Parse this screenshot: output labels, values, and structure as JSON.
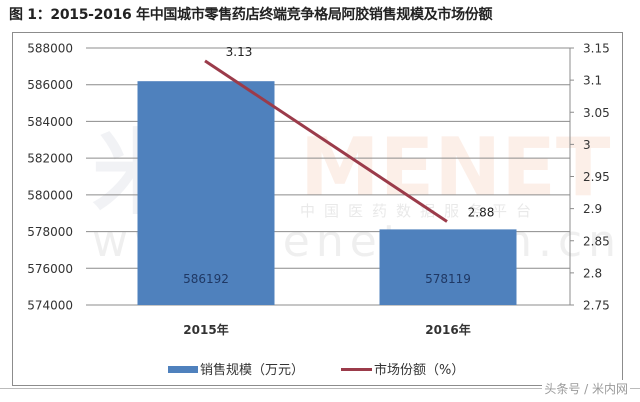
{
  "title": "图 1：2015-2016 年中国城市零售药店终端竞争格局阿胶销售规模及市场份额",
  "watermark": {
    "logo_text": "MENET",
    "subtitle": "中国医药数据服务平台",
    "url": "www.menet.com.cn"
  },
  "credit": "头条号 / 米内网",
  "colors": {
    "bar": "#4f81bd",
    "line": "#9b3b4a",
    "grid": "#8c8c8c",
    "text": "#333333"
  },
  "chart_data": {
    "type": "bar+line",
    "title": "图 1：2015-2016 年中国城市零售药店终端竞争格局阿胶销售规模及市场份额",
    "categories": [
      "2015年",
      "2016年"
    ],
    "series": [
      {
        "name": "销售规模（万元）",
        "type": "bar",
        "axis": "left",
        "values": [
          586192,
          578119
        ],
        "labels": [
          "586192",
          "578119"
        ]
      },
      {
        "name": "市场份额（%）",
        "type": "line",
        "axis": "right",
        "values": [
          3.13,
          2.88
        ],
        "labels": [
          "3.13",
          "2.88"
        ]
      }
    ],
    "left_axis": {
      "ylim": [
        574000,
        588000
      ],
      "ticks": [
        "588000",
        "586000",
        "584000",
        "582000",
        "580000",
        "578000",
        "576000",
        "574000"
      ]
    },
    "right_axis": {
      "ylim": [
        2.75,
        3.15
      ],
      "ticks": [
        "3.15",
        "3.1",
        "3.05",
        "3",
        "2.95",
        "2.9",
        "2.85",
        "2.8",
        "2.75"
      ]
    },
    "xlabel": "",
    "ylabel": "",
    "grid": true,
    "legend_position": "bottom",
    "legend": [
      "销售规模（万元）",
      "市场份额（%）"
    ]
  }
}
